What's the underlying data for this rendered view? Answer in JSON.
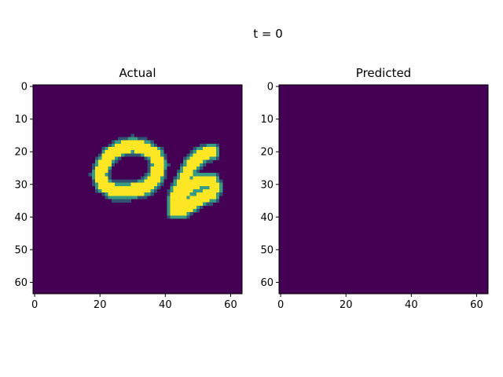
{
  "figure": {
    "suptitle": "t = 0"
  },
  "chart_data": [
    {
      "type": "heatmap",
      "title": "Actual",
      "xlabel": "",
      "ylabel": "",
      "colormap": "viridis",
      "grid": false,
      "grid_size": [
        64,
        64
      ],
      "xlim": [
        0,
        64
      ],
      "ylim": [
        64,
        0
      ],
      "xticks": [
        "0",
        "20",
        "40",
        "60"
      ],
      "yticks": [
        "0",
        "10",
        "20",
        "30",
        "40",
        "50",
        "60"
      ],
      "background_value": 0,
      "content": "handwritten digits '0' and '6' rendered in bright (value ~1) pixels on dark background",
      "strokes": [
        {
          "digit": "0",
          "points": [
            [
              26,
              19
            ],
            [
              30,
              18
            ],
            [
              34,
              19
            ],
            [
              37,
              21
            ],
            [
              38,
              24
            ],
            [
              37,
              28
            ],
            [
              34,
              31
            ],
            [
              29,
              32
            ],
            [
              24,
              32
            ],
            [
              21,
              30
            ],
            [
              20,
              27
            ],
            [
              21,
              24
            ],
            [
              23,
              21
            ],
            [
              26,
              19
            ]
          ],
          "width": 2.4
        },
        {
          "digit": "6",
          "points": [
            [
              54,
              20
            ],
            [
              51,
              21
            ],
            [
              48,
              24
            ],
            [
              46,
              28
            ],
            [
              44,
              32
            ],
            [
              43,
              35
            ],
            [
              43,
              38
            ],
            [
              45,
              38
            ],
            [
              48,
              36
            ],
            [
              51,
              34
            ],
            [
              54,
              33
            ],
            [
              55,
              31
            ],
            [
              54,
              29
            ],
            [
              51,
              29
            ],
            [
              48,
              30
            ],
            [
              46,
              32
            ],
            [
              45,
              34
            ]
          ],
          "width": 2.3
        }
      ]
    },
    {
      "type": "heatmap",
      "title": "Predicted",
      "xlabel": "",
      "ylabel": "",
      "colormap": "viridis",
      "grid": false,
      "grid_size": [
        64,
        64
      ],
      "xlim": [
        0,
        64
      ],
      "ylim": [
        64,
        0
      ],
      "xticks": [
        "0",
        "20",
        "40",
        "60"
      ],
      "yticks": [
        "0",
        "10",
        "20",
        "30",
        "40",
        "50",
        "60"
      ],
      "background_value": 0,
      "strokes": []
    }
  ],
  "colors": {
    "low": "#440154",
    "mid": "#21918c",
    "high": "#fde725"
  }
}
